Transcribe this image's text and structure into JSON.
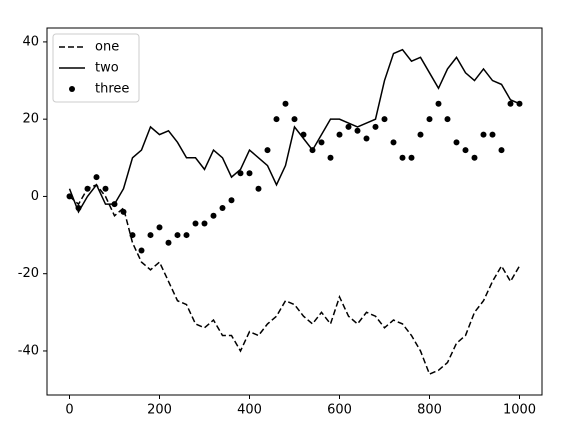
{
  "chart_data": {
    "type": "line",
    "x": [
      0,
      20,
      40,
      60,
      80,
      100,
      120,
      140,
      160,
      180,
      200,
      220,
      240,
      260,
      280,
      300,
      320,
      340,
      360,
      380,
      400,
      420,
      440,
      460,
      480,
      500,
      520,
      540,
      560,
      580,
      600,
      620,
      640,
      660,
      680,
      700,
      720,
      740,
      760,
      780,
      800,
      820,
      840,
      860,
      880,
      900,
      920,
      940,
      960,
      980,
      1000
    ],
    "series": [
      {
        "name": "one",
        "color": "#000000",
        "style": "dashed",
        "values": [
          0,
          -2,
          2,
          3,
          0,
          -5,
          -3,
          -12,
          -17,
          -19,
          -17,
          -22,
          -27,
          -28,
          -33,
          -34,
          -32,
          -36,
          -36,
          -40,
          -35,
          -36,
          -33,
          -31,
          -27,
          -28,
          -31,
          -33,
          -30,
          -33,
          -26,
          -31,
          -33,
          -30,
          -31,
          -34,
          -32,
          -33,
          -36,
          -40,
          -46,
          -45,
          -43,
          -38,
          -36,
          -30,
          -27,
          -22,
          -18,
          -22,
          -18
        ]
      },
      {
        "name": "two",
        "color": "#000000",
        "style": "solid",
        "values": [
          2,
          -4,
          0,
          3,
          -2,
          -2,
          2,
          10,
          12,
          18,
          16,
          17,
          14,
          10,
          10,
          7,
          12,
          10,
          5,
          7,
          12,
          10,
          8,
          3,
          8,
          18,
          15,
          12,
          16,
          20,
          20,
          19,
          18,
          19,
          20,
          30,
          37,
          38,
          35,
          36,
          32,
          28,
          33,
          36,
          32,
          30,
          33,
          30,
          29,
          25,
          24
        ]
      },
      {
        "name": "three",
        "color": "#000000",
        "style": "dots",
        "values": [
          0,
          -3,
          2,
          5,
          2,
          -2,
          -4,
          -10,
          -14,
          -10,
          -8,
          -12,
          -10,
          -10,
          -7,
          -7,
          -5,
          -3,
          -1,
          6,
          6,
          2,
          12,
          20,
          24,
          20,
          16,
          12,
          14,
          10,
          16,
          18,
          17,
          15,
          18,
          20,
          14,
          10,
          10,
          16,
          20,
          24,
          20,
          14,
          12,
          10,
          16,
          16,
          12,
          24,
          24
        ]
      }
    ],
    "xlim": [
      -50,
      1050
    ],
    "ylim": [
      -51.4,
      43.6
    ],
    "xticks": [
      0,
      200,
      400,
      600,
      800,
      1000
    ],
    "yticks": [
      -40,
      -20,
      0,
      20,
      40
    ],
    "legend": "upper left"
  }
}
